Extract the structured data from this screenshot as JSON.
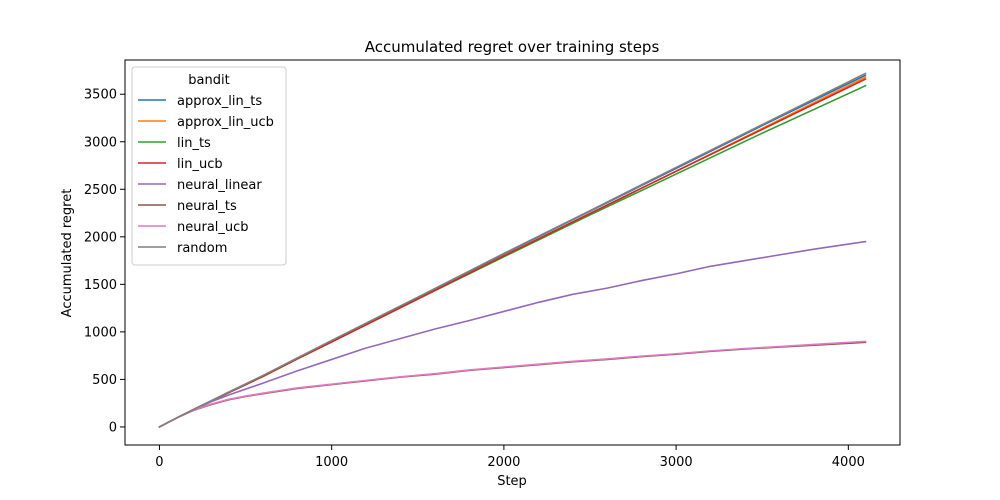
{
  "chart_data": {
    "type": "line",
    "title": "Accumulated regret over training steps",
    "xlabel": "Step",
    "ylabel": "Accumulated regret",
    "xlim": [
      -200,
      4300
    ],
    "ylim": [
      -190,
      3860
    ],
    "xticks": [
      0,
      1000,
      2000,
      3000,
      4000
    ],
    "yticks": [
      0,
      500,
      1000,
      1500,
      2000,
      2500,
      3000,
      3500
    ],
    "grid": false,
    "legend": {
      "title": "bandit",
      "placement": "top-left"
    },
    "series": [
      {
        "name": "approx_lin_ts",
        "color": "#1f77b4",
        "x": [
          0,
          100,
          200,
          400,
          600,
          800,
          1000,
          1500,
          2000,
          2500,
          3000,
          3500,
          4100
        ],
        "y": [
          0,
          95,
          185,
          360,
          535,
          720,
          905,
          1360,
          1820,
          2270,
          2720,
          3170,
          3700
        ]
      },
      {
        "name": "approx_lin_ucb",
        "color": "#ff7f0e",
        "x": [
          0,
          100,
          200,
          400,
          600,
          800,
          1000,
          1500,
          2000,
          2500,
          3000,
          3500,
          4100
        ],
        "y": [
          0,
          95,
          185,
          360,
          530,
          715,
          895,
          1345,
          1800,
          2245,
          2690,
          3140,
          3680
        ]
      },
      {
        "name": "lin_ts",
        "color": "#2ca02c",
        "x": [
          0,
          100,
          200,
          400,
          600,
          800,
          1000,
          1500,
          2000,
          2500,
          3000,
          3500,
          4100
        ],
        "y": [
          0,
          95,
          185,
          360,
          530,
          715,
          895,
          1345,
          1790,
          2230,
          2660,
          3090,
          3590
        ]
      },
      {
        "name": "lin_ucb",
        "color": "#d62728",
        "x": [
          0,
          100,
          200,
          400,
          600,
          800,
          1000,
          1500,
          2000,
          2500,
          3000,
          3500,
          4100
        ],
        "y": [
          0,
          95,
          185,
          360,
          530,
          715,
          895,
          1345,
          1800,
          2245,
          2690,
          3130,
          3660
        ]
      },
      {
        "name": "neural_linear",
        "color": "#9467bd",
        "x": [
          0,
          100,
          200,
          300,
          400,
          600,
          800,
          1000,
          1200,
          1400,
          1600,
          1800,
          2000,
          2200,
          2400,
          2600,
          2800,
          3000,
          3200,
          3400,
          3600,
          3800,
          4100
        ],
        "y": [
          0,
          95,
          180,
          265,
          335,
          460,
          590,
          710,
          830,
          930,
          1030,
          1120,
          1215,
          1310,
          1395,
          1460,
          1540,
          1610,
          1690,
          1750,
          1810,
          1870,
          1950
        ]
      },
      {
        "name": "neural_ts",
        "color": "#8c564b",
        "x": [
          0,
          100,
          200,
          300,
          400,
          500,
          600,
          800,
          1000,
          1200,
          1400,
          1600,
          1800,
          2000,
          2200,
          2400,
          2600,
          2800,
          3000,
          3200,
          3400,
          3600,
          3800,
          4100
        ],
        "y": [
          0,
          95,
          175,
          235,
          285,
          320,
          350,
          405,
          445,
          485,
          525,
          555,
          595,
          625,
          655,
          685,
          710,
          740,
          765,
          795,
          820,
          840,
          860,
          890
        ]
      },
      {
        "name": "neural_ucb",
        "color": "#e377c2",
        "x": [
          0,
          100,
          200,
          300,
          400,
          500,
          600,
          800,
          1000,
          1200,
          1400,
          1600,
          1800,
          2000,
          2200,
          2400,
          2600,
          2800,
          3000,
          3200,
          3400,
          3600,
          3800,
          4100
        ],
        "y": [
          0,
          95,
          178,
          240,
          290,
          325,
          355,
          410,
          450,
          490,
          528,
          560,
          600,
          630,
          660,
          690,
          715,
          745,
          770,
          800,
          825,
          845,
          868,
          900
        ]
      },
      {
        "name": "random",
        "color": "#7f7f7f",
        "x": [
          0,
          100,
          200,
          400,
          600,
          800,
          1000,
          1500,
          2000,
          2500,
          3000,
          3500,
          4100
        ],
        "y": [
          0,
          95,
          185,
          365,
          540,
          725,
          910,
          1365,
          1825,
          2275,
          2730,
          3180,
          3720
        ]
      }
    ]
  }
}
